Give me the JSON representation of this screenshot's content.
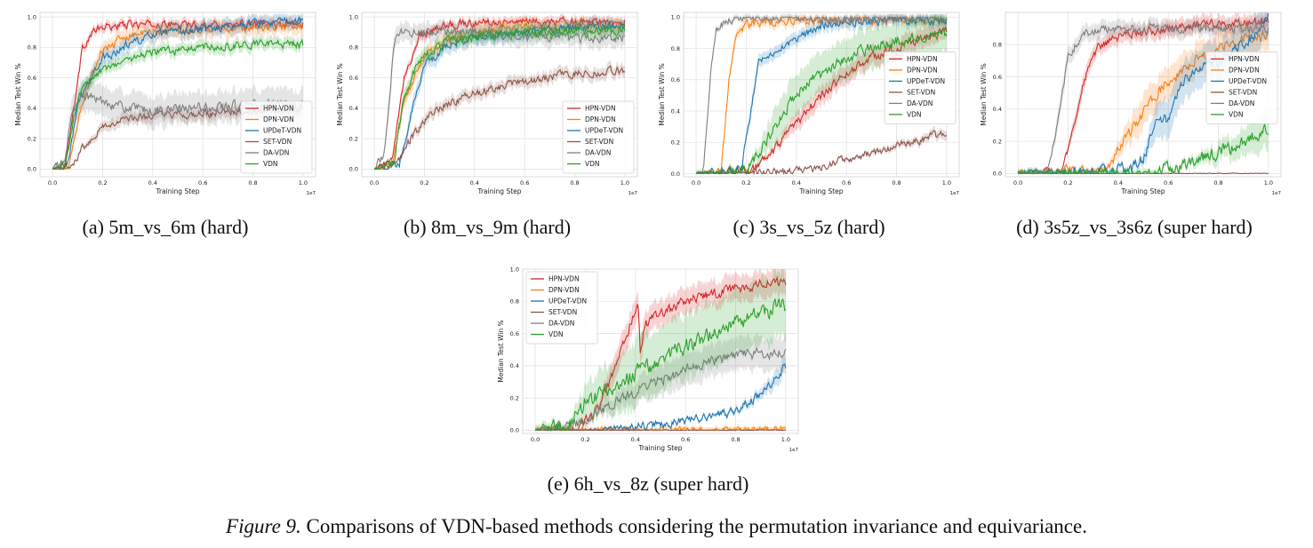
{
  "figure": {
    "label": "Figure 9.",
    "caption": "Comparisons of VDN-based methods considering the permutation invariance and equivariance."
  },
  "colors": {
    "HPN-VDN": "#d62728",
    "DPN-VDN": "#ff7f0e",
    "UPDeT-VDN": "#1f77b4",
    "SET-VDN": "#8c564b",
    "DA-VDN": "#7f7f7f",
    "VDN": "#2ca02c"
  },
  "chart_data": [
    {
      "id": "a",
      "type": "line",
      "subcaption": "(a)  5m_vs_6m (hard)",
      "xlabel": "Training Step",
      "ylabel": "Median Test Win %",
      "x_scale_label": "1e7",
      "xlim": [
        -0.05,
        1.05
      ],
      "ylim": [
        -0.05,
        1.03
      ],
      "xticks": [
        "0.0",
        "0.2",
        "0.4",
        "0.6",
        "0.8",
        "1.0"
      ],
      "yticks": [
        "0.0",
        "0.2",
        "0.4",
        "0.6",
        "0.8",
        "1.0"
      ],
      "legend": "bottom-right",
      "series": [
        {
          "name": "HPN-VDN",
          "band": 0.03,
          "x": [
            0,
            0.05,
            0.08,
            0.12,
            0.16,
            0.2,
            0.3,
            0.45,
            0.6,
            0.8,
            1.0
          ],
          "y": [
            0,
            0.02,
            0.35,
            0.8,
            0.9,
            0.93,
            0.95,
            0.95,
            0.95,
            0.95,
            0.95
          ]
        },
        {
          "name": "DPN-VDN",
          "band": 0.05,
          "x": [
            0,
            0.06,
            0.1,
            0.15,
            0.2,
            0.3,
            0.4,
            0.6,
            0.8,
            1.0
          ],
          "y": [
            0,
            0.02,
            0.3,
            0.6,
            0.78,
            0.88,
            0.9,
            0.92,
            0.93,
            0.94
          ]
        },
        {
          "name": "UPDeT-VDN",
          "band": 0.05,
          "x": [
            0,
            0.06,
            0.1,
            0.15,
            0.2,
            0.3,
            0.4,
            0.6,
            0.8,
            1.0
          ],
          "y": [
            0,
            0.03,
            0.4,
            0.6,
            0.72,
            0.82,
            0.88,
            0.92,
            0.96,
            0.97
          ]
        },
        {
          "name": "SET-VDN",
          "band": 0.04,
          "x": [
            0,
            0.08,
            0.12,
            0.2,
            0.3,
            0.4,
            0.6,
            0.8,
            1.0
          ],
          "y": [
            0,
            0.02,
            0.15,
            0.28,
            0.33,
            0.35,
            0.36,
            0.38,
            0.4
          ]
        },
        {
          "name": "DA-VDN",
          "band": 0.1,
          "x": [
            0,
            0.05,
            0.08,
            0.12,
            0.2,
            0.3,
            0.4,
            0.6,
            0.8,
            1.0
          ],
          "y": [
            0,
            0.05,
            0.4,
            0.48,
            0.45,
            0.4,
            0.38,
            0.4,
            0.42,
            0.42
          ]
        },
        {
          "name": "VDN",
          "band": 0.04,
          "x": [
            0,
            0.05,
            0.1,
            0.15,
            0.2,
            0.3,
            0.4,
            0.6,
            0.8,
            1.0
          ],
          "y": [
            0,
            0.03,
            0.45,
            0.6,
            0.66,
            0.72,
            0.77,
            0.8,
            0.82,
            0.82
          ]
        }
      ]
    },
    {
      "id": "b",
      "type": "line",
      "subcaption": "(b)  8m_vs_9m (hard)",
      "xlabel": "Training Step",
      "ylabel": "Median Test Win %",
      "x_scale_label": "1e7",
      "xlim": [
        -0.05,
        1.05
      ],
      "ylim": [
        -0.05,
        1.03
      ],
      "xticks": [
        "0.0",
        "0.2",
        "0.4",
        "0.6",
        "0.8",
        "1.0"
      ],
      "yticks": [
        "0.0",
        "0.2",
        "0.4",
        "0.6",
        "0.8",
        "1.0"
      ],
      "legend": "bottom-right",
      "series": [
        {
          "name": "HPN-VDN",
          "band": 0.03,
          "x": [
            0,
            0.07,
            0.12,
            0.18,
            0.25,
            0.35,
            0.5,
            0.7,
            1.0
          ],
          "y": [
            0,
            0.05,
            0.6,
            0.88,
            0.93,
            0.96,
            0.97,
            0.97,
            0.97
          ]
        },
        {
          "name": "DPN-VDN",
          "band": 0.05,
          "x": [
            0,
            0.07,
            0.12,
            0.2,
            0.3,
            0.45,
            0.6,
            0.8,
            1.0
          ],
          "y": [
            0,
            0.03,
            0.45,
            0.75,
            0.86,
            0.91,
            0.93,
            0.94,
            0.95
          ]
        },
        {
          "name": "UPDeT-VDN",
          "band": 0.05,
          "x": [
            0,
            0.1,
            0.15,
            0.2,
            0.3,
            0.4,
            0.6,
            0.8,
            1.0
          ],
          "y": [
            0,
            0.03,
            0.4,
            0.68,
            0.82,
            0.86,
            0.9,
            0.93,
            0.94
          ]
        },
        {
          "name": "SET-VDN",
          "band": 0.04,
          "x": [
            0,
            0.1,
            0.15,
            0.25,
            0.4,
            0.6,
            0.8,
            1.0
          ],
          "y": [
            0,
            0.05,
            0.22,
            0.4,
            0.5,
            0.58,
            0.63,
            0.65
          ]
        },
        {
          "name": "DA-VDN",
          "band": 0.06,
          "x": [
            0,
            0.04,
            0.08,
            0.12,
            0.2,
            0.35,
            0.55,
            0.75,
            1.0
          ],
          "y": [
            0,
            0.1,
            0.85,
            0.9,
            0.9,
            0.9,
            0.88,
            0.86,
            0.86
          ]
        },
        {
          "name": "VDN",
          "band": 0.05,
          "x": [
            0,
            0.08,
            0.12,
            0.18,
            0.3,
            0.45,
            0.6,
            0.8,
            1.0
          ],
          "y": [
            0,
            0.05,
            0.5,
            0.72,
            0.85,
            0.88,
            0.9,
            0.91,
            0.92
          ]
        }
      ]
    },
    {
      "id": "c",
      "type": "line",
      "subcaption": "(c)  3s_vs_5z (hard)",
      "xlabel": "Training Step",
      "ylabel": "Median Test Win %",
      "x_scale_label": "1e7",
      "xlim": [
        -0.05,
        1.05
      ],
      "ylim": [
        -0.02,
        1.03
      ],
      "xticks": [
        "0.0",
        "0.2",
        "0.4",
        "0.6",
        "0.8",
        "1.0"
      ],
      "yticks": [
        "0.0",
        "0.2",
        "0.4",
        "0.6",
        "0.8",
        "1.0"
      ],
      "legend": "middle-right",
      "series": [
        {
          "name": "HPN-VDN",
          "band": 0.06,
          "x": [
            0,
            0.22,
            0.3,
            0.4,
            0.5,
            0.6,
            0.7,
            0.8,
            0.9,
            1.0
          ],
          "y": [
            0,
            0.02,
            0.12,
            0.32,
            0.5,
            0.64,
            0.74,
            0.8,
            0.86,
            0.92
          ]
        },
        {
          "name": "DPN-VDN",
          "band": 0.03,
          "x": [
            0,
            0.1,
            0.13,
            0.16,
            0.2,
            0.3,
            0.5,
            0.8,
            1.0
          ],
          "y": [
            0,
            0.02,
            0.6,
            0.9,
            0.95,
            0.97,
            0.98,
            0.98,
            0.98
          ]
        },
        {
          "name": "UPDeT-VDN",
          "band": 0.04,
          "x": [
            0,
            0.18,
            0.22,
            0.25,
            0.3,
            0.4,
            0.5,
            0.6,
            0.8,
            1.0
          ],
          "y": [
            0,
            0.03,
            0.42,
            0.72,
            0.78,
            0.85,
            0.95,
            0.97,
            0.98,
            0.98
          ]
        },
        {
          "name": "SET-VDN",
          "band": 0.04,
          "x": [
            0,
            0.45,
            0.55,
            0.7,
            0.85,
            1.0
          ],
          "y": [
            0,
            0.02,
            0.07,
            0.13,
            0.2,
            0.26
          ]
        },
        {
          "name": "DA-VDN",
          "band": 0.02,
          "x": [
            0,
            0.03,
            0.06,
            0.08,
            0.12,
            0.2,
            0.5,
            1.0
          ],
          "y": [
            0,
            0.02,
            0.7,
            0.92,
            0.98,
            0.99,
            0.99,
            0.99
          ]
        },
        {
          "name": "VDN",
          "band": 0.13,
          "x": [
            0,
            0.2,
            0.26,
            0.35,
            0.45,
            0.55,
            0.65,
            0.8,
            1.0
          ],
          "y": [
            0,
            0.02,
            0.15,
            0.4,
            0.58,
            0.7,
            0.78,
            0.85,
            0.9
          ]
        }
      ]
    },
    {
      "id": "d",
      "type": "line",
      "subcaption": "(d)  3s5z_vs_3s6z (super hard)",
      "xlabel": "Training Step",
      "ylabel": "Median Test Win %",
      "x_scale_label": "1e7",
      "xlim": [
        -0.05,
        1.05
      ],
      "ylim": [
        -0.02,
        1.0
      ],
      "xticks": [
        "0.0",
        "0.2",
        "0.4",
        "0.6",
        "0.8",
        "1.0"
      ],
      "yticks": [
        "0.0",
        "0.2",
        "0.4",
        "0.6",
        "0.8"
      ],
      "legend": "middle-right",
      "series": [
        {
          "name": "HPN-VDN",
          "band": 0.05,
          "x": [
            0,
            0.18,
            0.22,
            0.27,
            0.32,
            0.4,
            0.5,
            0.6,
            0.8,
            1.0
          ],
          "y": [
            0,
            0.02,
            0.3,
            0.6,
            0.78,
            0.85,
            0.88,
            0.9,
            0.93,
            0.95
          ]
        },
        {
          "name": "DPN-VDN",
          "band": 0.1,
          "x": [
            0,
            0.35,
            0.4,
            0.5,
            0.6,
            0.7,
            0.8,
            0.9,
            1.0
          ],
          "y": [
            0,
            0.02,
            0.15,
            0.38,
            0.58,
            0.7,
            0.78,
            0.83,
            0.86
          ]
        },
        {
          "name": "UPDeT-VDN",
          "band": 0.12,
          "x": [
            0,
            0.45,
            0.5,
            0.55,
            0.6,
            0.65,
            0.7,
            0.8,
            0.9,
            1.0
          ],
          "y": [
            0,
            0.02,
            0.1,
            0.3,
            0.35,
            0.55,
            0.62,
            0.7,
            0.8,
            0.95
          ]
        },
        {
          "name": "SET-VDN",
          "band": 0.01,
          "x": [
            0,
            0.5,
            1.0
          ],
          "y": [
            0,
            0,
            0
          ]
        },
        {
          "name": "DA-VDN",
          "band": 0.05,
          "x": [
            0,
            0.12,
            0.16,
            0.2,
            0.25,
            0.35,
            0.5,
            0.7,
            1.0
          ],
          "y": [
            0,
            0.02,
            0.35,
            0.72,
            0.85,
            0.9,
            0.9,
            0.9,
            0.9
          ]
        },
        {
          "name": "VDN",
          "band": 0.14,
          "x": [
            0,
            0.55,
            0.65,
            0.75,
            0.85,
            0.95,
            1.0
          ],
          "y": [
            0,
            0.01,
            0.04,
            0.1,
            0.16,
            0.24,
            0.27
          ]
        }
      ]
    },
    {
      "id": "e",
      "type": "line",
      "subcaption": "(e)  6h_vs_8z (super hard)",
      "xlabel": "Training Step",
      "ylabel": "Median Test Win %",
      "x_scale_label": "1e7",
      "xlim": [
        -0.05,
        1.05
      ],
      "ylim": [
        -0.02,
        1.0
      ],
      "xticks": [
        "0.0",
        "0.2",
        "0.4",
        "0.6",
        "0.8",
        "1.0"
      ],
      "yticks": [
        "0.0",
        "0.2",
        "0.4",
        "0.6",
        "0.8",
        "1.0"
      ],
      "legend": "top-left",
      "series": [
        {
          "name": "HPN-VDN",
          "band": 0.08,
          "x": [
            0,
            0.18,
            0.25,
            0.32,
            0.38,
            0.41,
            0.42,
            0.43,
            0.44,
            0.5,
            0.6,
            0.7,
            0.8,
            0.9,
            1.0
          ],
          "y": [
            0,
            0.02,
            0.12,
            0.38,
            0.66,
            0.8,
            0.45,
            0.58,
            0.66,
            0.72,
            0.8,
            0.84,
            0.88,
            0.91,
            0.92
          ]
        },
        {
          "name": "DPN-VDN",
          "band": 0.12,
          "x": [
            0,
            0.7,
            0.8,
            0.9,
            1.0
          ],
          "y": [
            0,
            0,
            0.003,
            0.005,
            0.008
          ]
        },
        {
          "name": "UPDeT-VDN",
          "band": 0.05,
          "x": [
            0,
            0.25,
            0.4,
            0.55,
            0.7,
            0.8,
            0.9,
            1.0
          ],
          "y": [
            0,
            0.003,
            0.02,
            0.05,
            0.08,
            0.12,
            0.22,
            0.4
          ]
        },
        {
          "name": "SET-VDN",
          "band": 0.01,
          "x": [
            0,
            0.5,
            1.0
          ],
          "y": [
            0,
            0,
            0
          ]
        },
        {
          "name": "DA-VDN",
          "band": 0.1,
          "x": [
            0,
            0.15,
            0.25,
            0.35,
            0.45,
            0.55,
            0.65,
            0.75,
            0.85,
            1.0
          ],
          "y": [
            0,
            0.02,
            0.12,
            0.2,
            0.28,
            0.34,
            0.4,
            0.44,
            0.47,
            0.47
          ]
        },
        {
          "name": "VDN",
          "band": 0.2,
          "x": [
            0,
            0.13,
            0.2,
            0.3,
            0.4,
            0.5,
            0.6,
            0.7,
            0.8,
            0.9,
            1.0
          ],
          "y": [
            0,
            0.02,
            0.18,
            0.26,
            0.36,
            0.44,
            0.52,
            0.6,
            0.67,
            0.72,
            0.78
          ]
        }
      ]
    }
  ]
}
